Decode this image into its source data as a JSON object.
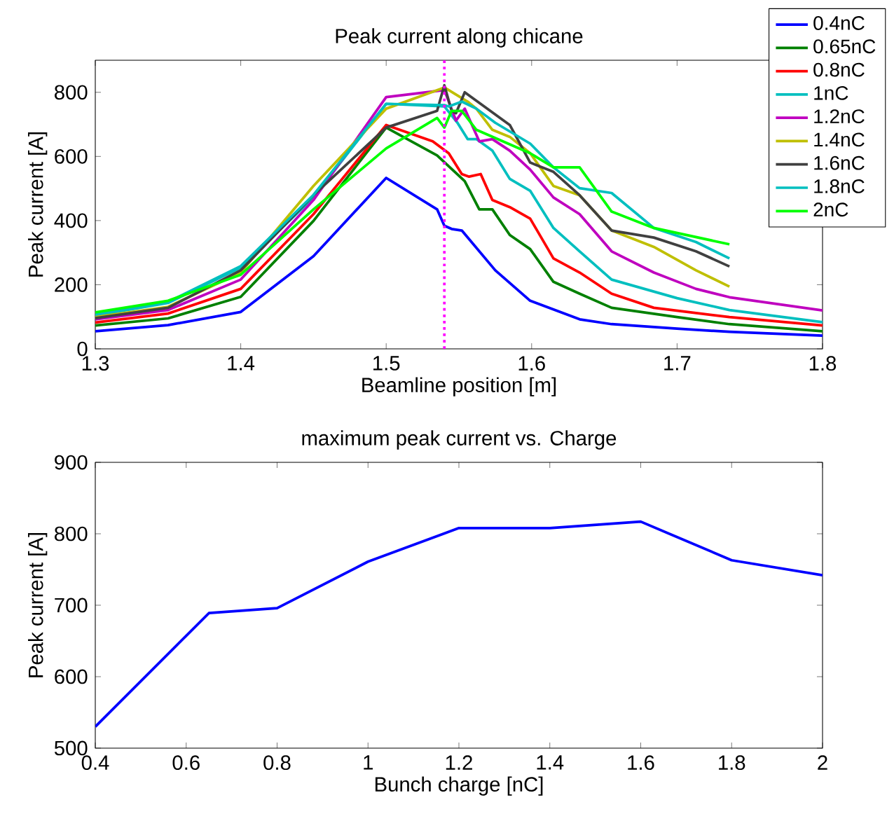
{
  "chart_data": [
    {
      "type": "line",
      "title": "Peak current along chicane",
      "xlabel": "Beamline position [m]",
      "ylabel": "Peak current [A]",
      "xlim": [
        1.3,
        1.8
      ],
      "xticks": [
        1.3,
        1.4,
        1.5,
        1.6,
        1.7,
        1.8
      ],
      "ylim": [
        0,
        900
      ],
      "yticks": [
        0,
        200,
        400,
        600,
        800
      ],
      "legend": "top right",
      "line_style": "solid",
      "ref_lines": [
        {
          "axis": "x",
          "value": 1.54,
          "color": "#ff00ff",
          "line_style": "dotted"
        }
      ],
      "series": [
        {
          "name": "0.4nC",
          "color": "#0000ff",
          "x": [
            1.3,
            1.35,
            1.4,
            1.45,
            1.5,
            1.535,
            1.54,
            1.545,
            1.552,
            1.575,
            1.599,
            1.633,
            1.655,
            1.7,
            1.736,
            1.8
          ],
          "values": [
            55,
            74,
            115,
            289,
            533,
            435,
            384,
            374,
            369,
            245,
            150,
            92,
            77,
            63,
            53,
            41
          ]
        },
        {
          "name": "0.65nC",
          "color": "#008000",
          "x": [
            1.3,
            1.35,
            1.4,
            1.45,
            1.5,
            1.535,
            1.554,
            1.564,
            1.573,
            1.585,
            1.599,
            1.615,
            1.633,
            1.655,
            1.7,
            1.736,
            1.8
          ],
          "values": [
            73,
            95,
            162,
            399,
            690,
            603,
            523,
            435,
            435,
            355,
            311,
            209,
            172,
            128,
            99,
            77,
            55
          ]
        },
        {
          "name": "0.8nC",
          "color": "#ff0000",
          "x": [
            1.3,
            1.35,
            1.4,
            1.45,
            1.5,
            1.532,
            1.543,
            1.552,
            1.557,
            1.565,
            1.573,
            1.585,
            1.599,
            1.615,
            1.633,
            1.655,
            1.684,
            1.736,
            1.8
          ],
          "values": [
            82,
            110,
            187,
            420,
            698,
            647,
            610,
            545,
            537,
            545,
            464,
            442,
            406,
            282,
            238,
            172,
            128,
            99,
            73
          ]
        },
        {
          "name": "1nC",
          "color": "#00bfbf",
          "x": [
            1.3,
            1.35,
            1.4,
            1.45,
            1.5,
            1.54,
            1.549,
            1.556,
            1.562,
            1.573,
            1.585,
            1.599,
            1.615,
            1.633,
            1.655,
            1.7,
            1.736,
            1.8
          ],
          "values": [
            104,
            143,
            253,
            472,
            764,
            756,
            705,
            654,
            654,
            618,
            530,
            493,
            377,
            304,
            216,
            158,
            121,
            83
          ]
        },
        {
          "name": "1.2nC",
          "color": "#bf00bf",
          "x": [
            1.3,
            1.35,
            1.4,
            1.45,
            1.5,
            1.54,
            1.548,
            1.554,
            1.564,
            1.573,
            1.585,
            1.599,
            1.615,
            1.633,
            1.655,
            1.684,
            1.713,
            1.736,
            1.8
          ],
          "values": [
            92,
            121,
            216,
            464,
            785,
            807,
            712,
            749,
            647,
            654,
            618,
            559,
            472,
            420,
            304,
            238,
            187,
            161,
            120
          ]
        },
        {
          "name": "1.4nC",
          "color": "#bfbf00",
          "x": [
            1.3,
            1.35,
            1.4,
            1.45,
            1.5,
            1.54,
            1.543,
            1.556,
            1.562,
            1.573,
            1.585,
            1.599,
            1.615,
            1.633,
            1.655,
            1.684,
            1.713,
            1.736
          ],
          "values": [
            99,
            131,
            238,
            508,
            749,
            815,
            807,
            771,
            749,
            683,
            661,
            610,
            508,
            479,
            369,
            318,
            245,
            194
          ]
        },
        {
          "name": "1.6nC",
          "color": "#404040",
          "x": [
            1.3,
            1.35,
            1.4,
            1.45,
            1.5,
            1.535,
            1.54,
            1.545,
            1.548,
            1.554,
            1.585,
            1.599,
            1.615,
            1.633,
            1.655,
            1.684,
            1.713,
            1.736
          ],
          "values": [
            96,
            128,
            245,
            479,
            690,
            742,
            822,
            742,
            735,
            800,
            698,
            581,
            552,
            479,
            369,
            347,
            304,
            257
          ]
        },
        {
          "name": "1.8nC",
          "color": "#00bfbf",
          "x": [
            1.3,
            1.35,
            1.4,
            1.45,
            1.5,
            1.54,
            1.543,
            1.552,
            1.562,
            1.575,
            1.599,
            1.615,
            1.633,
            1.655,
            1.684,
            1.713,
            1.736
          ],
          "values": [
            107,
            146,
            258,
            480,
            764,
            760,
            756,
            771,
            749,
            705,
            640,
            566,
            501,
            486,
            377,
            333,
            282
          ]
        },
        {
          "name": "2nC",
          "color": "#00ff00",
          "x": [
            1.3,
            1.35,
            1.4,
            1.45,
            1.5,
            1.535,
            1.54,
            1.545,
            1.552,
            1.562,
            1.599,
            1.615,
            1.633,
            1.655,
            1.684,
            1.736
          ],
          "values": [
            114,
            150,
            231,
            435,
            625,
            720,
            690,
            742,
            742,
            683,
            610,
            566,
            566,
            428,
            377,
            326
          ]
        }
      ]
    },
    {
      "type": "line",
      "title": "maximum peak current vs. Charge",
      "xlabel": "Bunch charge [nC]",
      "ylabel": "Peak current [A]",
      "xlim": [
        0.4,
        2
      ],
      "xticks": [
        0.4,
        0.6,
        0.8,
        1,
        1.2,
        1.4,
        1.6,
        1.8,
        2
      ],
      "ylim": [
        500,
        900
      ],
      "yticks": [
        500,
        600,
        700,
        800,
        900
      ],
      "line_style": "solid",
      "color": "#0000ff",
      "x": [
        0.4,
        0.65,
        0.8,
        1,
        1.2,
        1.4,
        1.6,
        1.8,
        2
      ],
      "values": [
        530,
        689,
        696,
        761,
        808,
        808,
        817,
        763,
        742
      ]
    }
  ]
}
